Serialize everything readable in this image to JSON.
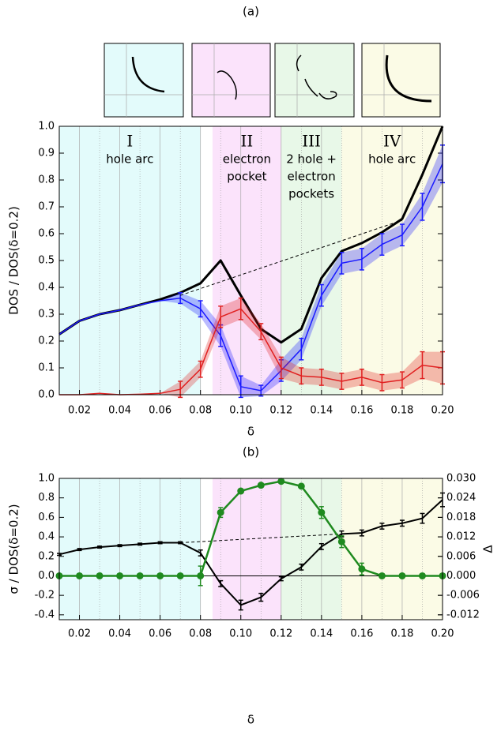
{
  "chart_data": [
    {
      "type": "line",
      "panel_label": "(a)",
      "y_label": "DOS / DOS(δ=0.2)",
      "x_label": "δ",
      "x": [
        0.01,
        0.02,
        0.03,
        0.04,
        0.05,
        0.06,
        0.07,
        0.08,
        0.09,
        0.1,
        0.11,
        0.12,
        0.13,
        0.14,
        0.15,
        0.16,
        0.17,
        0.18,
        0.19,
        0.2
      ],
      "xlim": [
        0.01,
        0.2
      ],
      "xticks": [
        0.02,
        0.04,
        0.06,
        0.08,
        {
          "value": 0.1,
          "label": "0.10"
        },
        0.12,
        0.14,
        0.16,
        0.18,
        {
          "value": 0.2,
          "label": "0.20"
        }
      ],
      "xminorticks": [
        0.01,
        0.03,
        0.05,
        0.07,
        0.09,
        0.11,
        0.13,
        0.15,
        0.17,
        0.19
      ],
      "ylim": [
        0,
        1
      ],
      "yticks": [
        {
          "value": 0,
          "label": "0.0"
        },
        0.1,
        0.2,
        0.3,
        0.4,
        0.5,
        0.6,
        0.7,
        0.8,
        0.9,
        {
          "value": 1,
          "label": "1.0"
        }
      ],
      "regions": [
        {
          "label": "I",
          "sublabel": [
            "hole arc"
          ],
          "start": 0.01,
          "end": 0.08,
          "color": "#e3fbfb"
        },
        {
          "label": "II",
          "sublabel": [
            "electron",
            "pocket"
          ],
          "start": 0.086,
          "end": 0.12,
          "color": "#fbe3fb"
        },
        {
          "label": "III",
          "sublabel": [
            "2 hole +",
            "electron",
            "pockets"
          ],
          "start": 0.12,
          "end": 0.15,
          "color": "#e8f8e8"
        },
        {
          "label": "IV",
          "sublabel": [
            "hole arc"
          ],
          "start": 0.15,
          "end": 0.2,
          "color": "#fbfbe6"
        }
      ],
      "series": [
        {
          "color": "#000000",
          "width": 3,
          "values": [
            0.225,
            0.275,
            0.3,
            0.315,
            0.335,
            0.355,
            0.38,
            0.415,
            0.5,
            0.37,
            0.245,
            0.195,
            0.245,
            0.435,
            0.535,
            0.565,
            0.605,
            0.655,
            0.82,
            1.0
          ]
        },
        {
          "color": "#1a1aff",
          "width": 1.5,
          "band": true,
          "values": [
            0.225,
            0.275,
            0.3,
            0.315,
            0.335,
            0.35,
            0.36,
            0.32,
            0.22,
            0.03,
            0.015,
            0.09,
            0.17,
            0.37,
            0.49,
            0.505,
            0.56,
            0.595,
            0.7,
            0.86
          ],
          "errors": [
            0,
            0,
            0,
            0,
            0,
            0,
            0.02,
            0.03,
            0.04,
            0.04,
            0.02,
            0.04,
            0.04,
            0.04,
            0.04,
            0.04,
            0.04,
            0.04,
            0.05,
            0.07
          ]
        },
        {
          "color": "#e02020",
          "width": 1.5,
          "band": true,
          "values": [
            0,
            0,
            0.005,
            0,
            0.002,
            0.005,
            0.02,
            0.095,
            0.29,
            0.32,
            0.235,
            0.1,
            0.07,
            0.065,
            0.05,
            0.065,
            0.045,
            0.055,
            0.11,
            0.1
          ],
          "errors": [
            0,
            0,
            0,
            0,
            0,
            0,
            0.03,
            0.03,
            0.04,
            0.04,
            0.03,
            0.04,
            0.03,
            0.03,
            0.03,
            0.03,
            0.03,
            0.03,
            0.05,
            0.06
          ]
        },
        {
          "color": "#000000",
          "width": 1,
          "dashed": true,
          "x": [
            0.07,
            0.18
          ],
          "values": [
            0.37,
            0.65
          ]
        }
      ]
    },
    {
      "type": "line",
      "panel_label": "(b)",
      "y_label": "σ / DOS(δ=0.2)",
      "y2_label": "Δ",
      "x_label": "δ",
      "x": [
        0.01,
        0.02,
        0.03,
        0.04,
        0.05,
        0.06,
        0.07,
        0.08,
        0.09,
        0.1,
        0.11,
        0.12,
        0.13,
        0.14,
        0.15,
        0.16,
        0.17,
        0.18,
        0.19,
        0.2
      ],
      "xlim": [
        0.01,
        0.2
      ],
      "xticks": [
        0.02,
        0.04,
        0.06,
        0.08,
        {
          "value": 0.1,
          "label": "0.10"
        },
        0.12,
        0.14,
        0.16,
        0.18,
        {
          "value": 0.2,
          "label": "0.20"
        }
      ],
      "xminorticks": [
        0.01,
        0.03,
        0.05,
        0.07,
        0.09,
        0.11,
        0.13,
        0.15,
        0.17,
        0.19
      ],
      "ylim": [
        -0.45,
        1.0
      ],
      "yticks": [
        -0.4,
        -0.2,
        {
          "value": 0,
          "label": "0.0"
        },
        0.2,
        0.4,
        0.6,
        0.8,
        {
          "value": 1,
          "label": "1.0"
        }
      ],
      "y2lim": [
        -0.0135,
        0.03
      ],
      "y2ticks": [
        -0.012,
        -0.006,
        {
          "value": 0,
          "label": "0.000"
        },
        0.006,
        0.012,
        0.018,
        0.024,
        {
          "value": 0.03,
          "label": "0.030"
        }
      ],
      "zero_line": true,
      "regions": [
        {
          "start": 0.01,
          "end": 0.08,
          "color": "#e3fbfb"
        },
        {
          "start": 0.086,
          "end": 0.12,
          "color": "#fbe3fb"
        },
        {
          "start": 0.12,
          "end": 0.15,
          "color": "#e8f8e8"
        },
        {
          "start": 0.15,
          "end": 0.2,
          "color": "#fbfbe6"
        }
      ],
      "series": [
        {
          "color": "#000000",
          "width": 2,
          "values": [
            0.22,
            0.27,
            0.295,
            0.31,
            0.325,
            0.34,
            0.34,
            0.235,
            -0.08,
            -0.3,
            -0.22,
            -0.03,
            0.09,
            0.3,
            0.43,
            0.44,
            0.51,
            0.54,
            0.59,
            0.78
          ],
          "errors": [
            0.01,
            0.01,
            0.01,
            0.01,
            0.01,
            0.01,
            0.01,
            0.03,
            0.03,
            0.05,
            0.04,
            0.02,
            0.03,
            0.03,
            0.03,
            0.03,
            0.03,
            0.03,
            0.05,
            0.07
          ]
        },
        {
          "color": "#000000",
          "width": 1,
          "dashed": true,
          "x": [
            0.07,
            0.15
          ],
          "values": [
            0.34,
            0.43
          ]
        },
        {
          "color": "#1f8a1f",
          "width": 2.5,
          "axis": "y2",
          "marker": true,
          "values": [
            0,
            0,
            0,
            0,
            0,
            0,
            0,
            0,
            0.0195,
            0.0261,
            0.0279,
            0.0291,
            0.0276,
            0.0195,
            0.0105,
            0.0021,
            0,
            0,
            0,
            0
          ],
          "errors": [
            0,
            0,
            0,
            0,
            0,
            0,
            0,
            0.003,
            0.0015,
            0.0006,
            0.0006,
            0.0006,
            0.0006,
            0.0018,
            0.0018,
            0.0018,
            0,
            0,
            0,
            0
          ]
        }
      ]
    }
  ]
}
